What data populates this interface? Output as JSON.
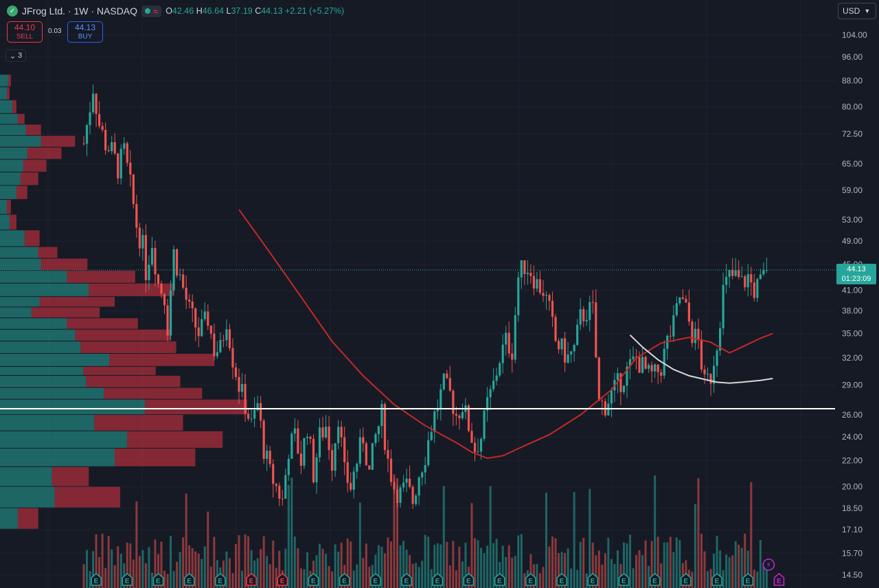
{
  "header": {
    "symbol": "JFrog Ltd. · 1W · NASDAQ",
    "logo_icon": "jfrog-frog-icon",
    "open_label": "O",
    "open": "42.46",
    "high_label": "H",
    "high": "46.64",
    "low_label": "L",
    "low": "37.19",
    "close_label": "C",
    "close": "44.13",
    "change": "+2.21 (+5.27%)",
    "wave_glyph": "≈"
  },
  "trade": {
    "sell_price": "44.10",
    "sell_label": "SELL",
    "spread": "0.03",
    "buy_price": "44.13",
    "buy_label": "BUY"
  },
  "indicators_collapsed": {
    "count": "3"
  },
  "currency": "USD",
  "last_price": {
    "price": "44.13",
    "countdown": "01:23:09"
  },
  "colors": {
    "background": "#161a25",
    "up": "#26a69a",
    "down": "#ef5350",
    "ma_red": "#c62828",
    "ma_white": "#d9d9d9",
    "hline": "#ffffff",
    "vp_up": "#26a69a",
    "vp_down": "#f23645",
    "earnings_up": "#26a69a",
    "earnings_down": "#f23645",
    "future_earnings": "#d41fd4"
  },
  "chart_data": {
    "type": "candlestick",
    "interval": "1W",
    "y_scale": "log",
    "y_ticks": [
      "104.00",
      "96.00",
      "88.00",
      "80.00",
      "72.50",
      "65.00",
      "59.00",
      "53.00",
      "49.00",
      "45.00",
      "41.00",
      "38.00",
      "35.00",
      "32.00",
      "29.00",
      "26.00",
      "24.00",
      "22.00",
      "20.00",
      "18.50",
      "17.10",
      "15.70",
      "14.50"
    ],
    "horizontal_line": 26.6,
    "close_path": [
      [
        0,
        70
      ],
      [
        2,
        80
      ],
      [
        3,
        86
      ],
      [
        5,
        75
      ],
      [
        7,
        70
      ],
      [
        9,
        68
      ],
      [
        11,
        64
      ],
      [
        13,
        68
      ],
      [
        15,
        60
      ],
      [
        17,
        52
      ],
      [
        19,
        48
      ],
      [
        20,
        44
      ],
      [
        22,
        49
      ],
      [
        24,
        42
      ],
      [
        26,
        40
      ],
      [
        27,
        36
      ],
      [
        29,
        47
      ],
      [
        31,
        43
      ],
      [
        34,
        38
      ],
      [
        37,
        35
      ],
      [
        40,
        37
      ],
      [
        42,
        33
      ],
      [
        44,
        33
      ],
      [
        46,
        37
      ],
      [
        48,
        32
      ],
      [
        50,
        29
      ],
      [
        52,
        27
      ],
      [
        54,
        25
      ],
      [
        56,
        27
      ],
      [
        58,
        23
      ],
      [
        60,
        21
      ],
      [
        62,
        20
      ],
      [
        64,
        19
      ],
      [
        66,
        23
      ],
      [
        68,
        24
      ],
      [
        70,
        22
      ],
      [
        72,
        25
      ],
      [
        74,
        21
      ],
      [
        76,
        24
      ],
      [
        78,
        25
      ],
      [
        80,
        22
      ],
      [
        82,
        26
      ],
      [
        84,
        21
      ],
      [
        86,
        20
      ],
      [
        88,
        22
      ],
      [
        90,
        24
      ],
      [
        92,
        21
      ],
      [
        94,
        24
      ],
      [
        96,
        26
      ],
      [
        98,
        22
      ],
      [
        100,
        20
      ],
      [
        102,
        19.5
      ],
      [
        104,
        20
      ],
      [
        106,
        19
      ],
      [
        108,
        21
      ],
      [
        110,
        22.5
      ],
      [
        112,
        25
      ],
      [
        114,
        27
      ],
      [
        116,
        29
      ],
      [
        118,
        28
      ],
      [
        120,
        26
      ],
      [
        122,
        27
      ],
      [
        124,
        25
      ],
      [
        126,
        23
      ],
      [
        128,
        24
      ],
      [
        130,
        27
      ],
      [
        132,
        29
      ],
      [
        134,
        32
      ],
      [
        136,
        34
      ],
      [
        138,
        33
      ],
      [
        140,
        43
      ],
      [
        142,
        45
      ],
      [
        144,
        44
      ],
      [
        146,
        42
      ],
      [
        148,
        41
      ],
      [
        150,
        38
      ],
      [
        152,
        34
      ],
      [
        154,
        33
      ],
      [
        156,
        32
      ],
      [
        158,
        33
      ],
      [
        160,
        37
      ],
      [
        162,
        38
      ],
      [
        164,
        38
      ],
      [
        166,
        27
      ],
      [
        168,
        27
      ],
      [
        170,
        28
      ],
      [
        172,
        29
      ],
      [
        174,
        30
      ],
      [
        176,
        31
      ],
      [
        178,
        32
      ],
      [
        180,
        31
      ],
      [
        182,
        30
      ],
      [
        184,
        30
      ],
      [
        186,
        31
      ],
      [
        188,
        34
      ],
      [
        190,
        36
      ],
      [
        192,
        40
      ],
      [
        194,
        38
      ],
      [
        196,
        35
      ],
      [
        198,
        34
      ],
      [
        200,
        29
      ],
      [
        202,
        30
      ],
      [
        204,
        34
      ],
      [
        206,
        41
      ],
      [
        208,
        43
      ],
      [
        210,
        43
      ],
      [
        212,
        42
      ],
      [
        214,
        43
      ],
      [
        216,
        41
      ],
      [
        218,
        42
      ],
      [
        220,
        44.1
      ]
    ],
    "ma_red_path": [
      [
        50,
        55
      ],
      [
        60,
        47
      ],
      [
        70,
        40
      ],
      [
        80,
        34
      ],
      [
        90,
        30
      ],
      [
        100,
        27
      ],
      [
        110,
        25
      ],
      [
        120,
        23.5
      ],
      [
        125,
        22.7
      ],
      [
        130,
        22.2
      ],
      [
        135,
        22.4
      ],
      [
        140,
        23
      ],
      [
        150,
        24.2
      ],
      [
        160,
        26
      ],
      [
        170,
        28.5
      ],
      [
        178,
        32
      ],
      [
        186,
        33.8
      ],
      [
        195,
        34.5
      ],
      [
        202,
        33.9
      ],
      [
        208,
        32.6
      ],
      [
        212,
        33.3
      ],
      [
        218,
        34.4
      ],
      [
        222,
        35
      ]
    ],
    "ma_white_path": [
      [
        176,
        34.8
      ],
      [
        180,
        33.3
      ],
      [
        185,
        31.8
      ],
      [
        190,
        30.7
      ],
      [
        195,
        30
      ],
      [
        200,
        29.6
      ],
      [
        204,
        29.3
      ],
      [
        208,
        29.2
      ],
      [
        212,
        29.3
      ],
      [
        218,
        29.5
      ],
      [
        222,
        29.7
      ]
    ],
    "earnings_markers": [
      {
        "bar": 4,
        "kind": "up"
      },
      {
        "bar": 14,
        "kind": "up"
      },
      {
        "bar": 24,
        "kind": "up"
      },
      {
        "bar": 34,
        "kind": "up"
      },
      {
        "bar": 44,
        "kind": "up"
      },
      {
        "bar": 54,
        "kind": "down"
      },
      {
        "bar": 64,
        "kind": "down"
      },
      {
        "bar": 74,
        "kind": "up"
      },
      {
        "bar": 84,
        "kind": "up"
      },
      {
        "bar": 94,
        "kind": "up"
      },
      {
        "bar": 104,
        "kind": "up"
      },
      {
        "bar": 114,
        "kind": "up"
      },
      {
        "bar": 124,
        "kind": "up"
      },
      {
        "bar": 134,
        "kind": "up"
      },
      {
        "bar": 144,
        "kind": "up"
      },
      {
        "bar": 154,
        "kind": "up"
      },
      {
        "bar": 164,
        "kind": "up"
      },
      {
        "bar": 174,
        "kind": "up"
      },
      {
        "bar": 184,
        "kind": "up"
      },
      {
        "bar": 194,
        "kind": "up"
      },
      {
        "bar": 204,
        "kind": "up"
      },
      {
        "bar": 214,
        "kind": "up"
      },
      {
        "bar": 224,
        "kind": "future"
      }
    ],
    "earnings_label": "E",
    "volume_profile": [
      {
        "price": 90,
        "up": 12,
        "down": 4
      },
      {
        "price": 86,
        "up": 10,
        "down": 4
      },
      {
        "price": 82,
        "up": 18,
        "down": 6
      },
      {
        "price": 78,
        "up": 26,
        "down": 10
      },
      {
        "price": 75,
        "up": 38,
        "down": 22
      },
      {
        "price": 72,
        "up": 60,
        "down": 50
      },
      {
        "price": 69,
        "up": 40,
        "down": 50
      },
      {
        "price": 66,
        "up": 34,
        "down": 34
      },
      {
        "price": 63,
        "up": 30,
        "down": 26
      },
      {
        "price": 60,
        "up": 24,
        "down": 16
      },
      {
        "price": 57,
        "up": 10,
        "down": 6
      },
      {
        "price": 54,
        "up": 14,
        "down": 10
      },
      {
        "price": 51,
        "up": 36,
        "down": 22
      },
      {
        "price": 48,
        "up": 56,
        "down": 28
      },
      {
        "price": 46,
        "up": 60,
        "down": 68
      },
      {
        "price": 44,
        "up": 98,
        "down": 100
      },
      {
        "price": 42,
        "up": 130,
        "down": 124
      },
      {
        "price": 40,
        "up": 58,
        "down": 110
      },
      {
        "price": 38.5,
        "up": 46,
        "down": 100
      },
      {
        "price": 37,
        "up": 98,
        "down": 104
      },
      {
        "price": 35.5,
        "up": 110,
        "down": 140
      },
      {
        "price": 34,
        "up": 118,
        "down": 140
      },
      {
        "price": 32.5,
        "up": 160,
        "down": 154
      },
      {
        "price": 31,
        "up": 122,
        "down": 106
      },
      {
        "price": 30,
        "up": 126,
        "down": 138
      },
      {
        "price": 28.7,
        "up": 152,
        "down": 144
      },
      {
        "price": 27.5,
        "up": 212,
        "down": 150
      },
      {
        "price": 26,
        "up": 138,
        "down": 130
      },
      {
        "price": 24.5,
        "up": 186,
        "down": 140
      },
      {
        "price": 23,
        "up": 168,
        "down": 118
      },
      {
        "price": 21.5,
        "up": 76,
        "down": 54
      },
      {
        "price": 20,
        "up": 80,
        "down": 96
      },
      {
        "price": 18.5,
        "up": 26,
        "down": 30
      }
    ]
  }
}
